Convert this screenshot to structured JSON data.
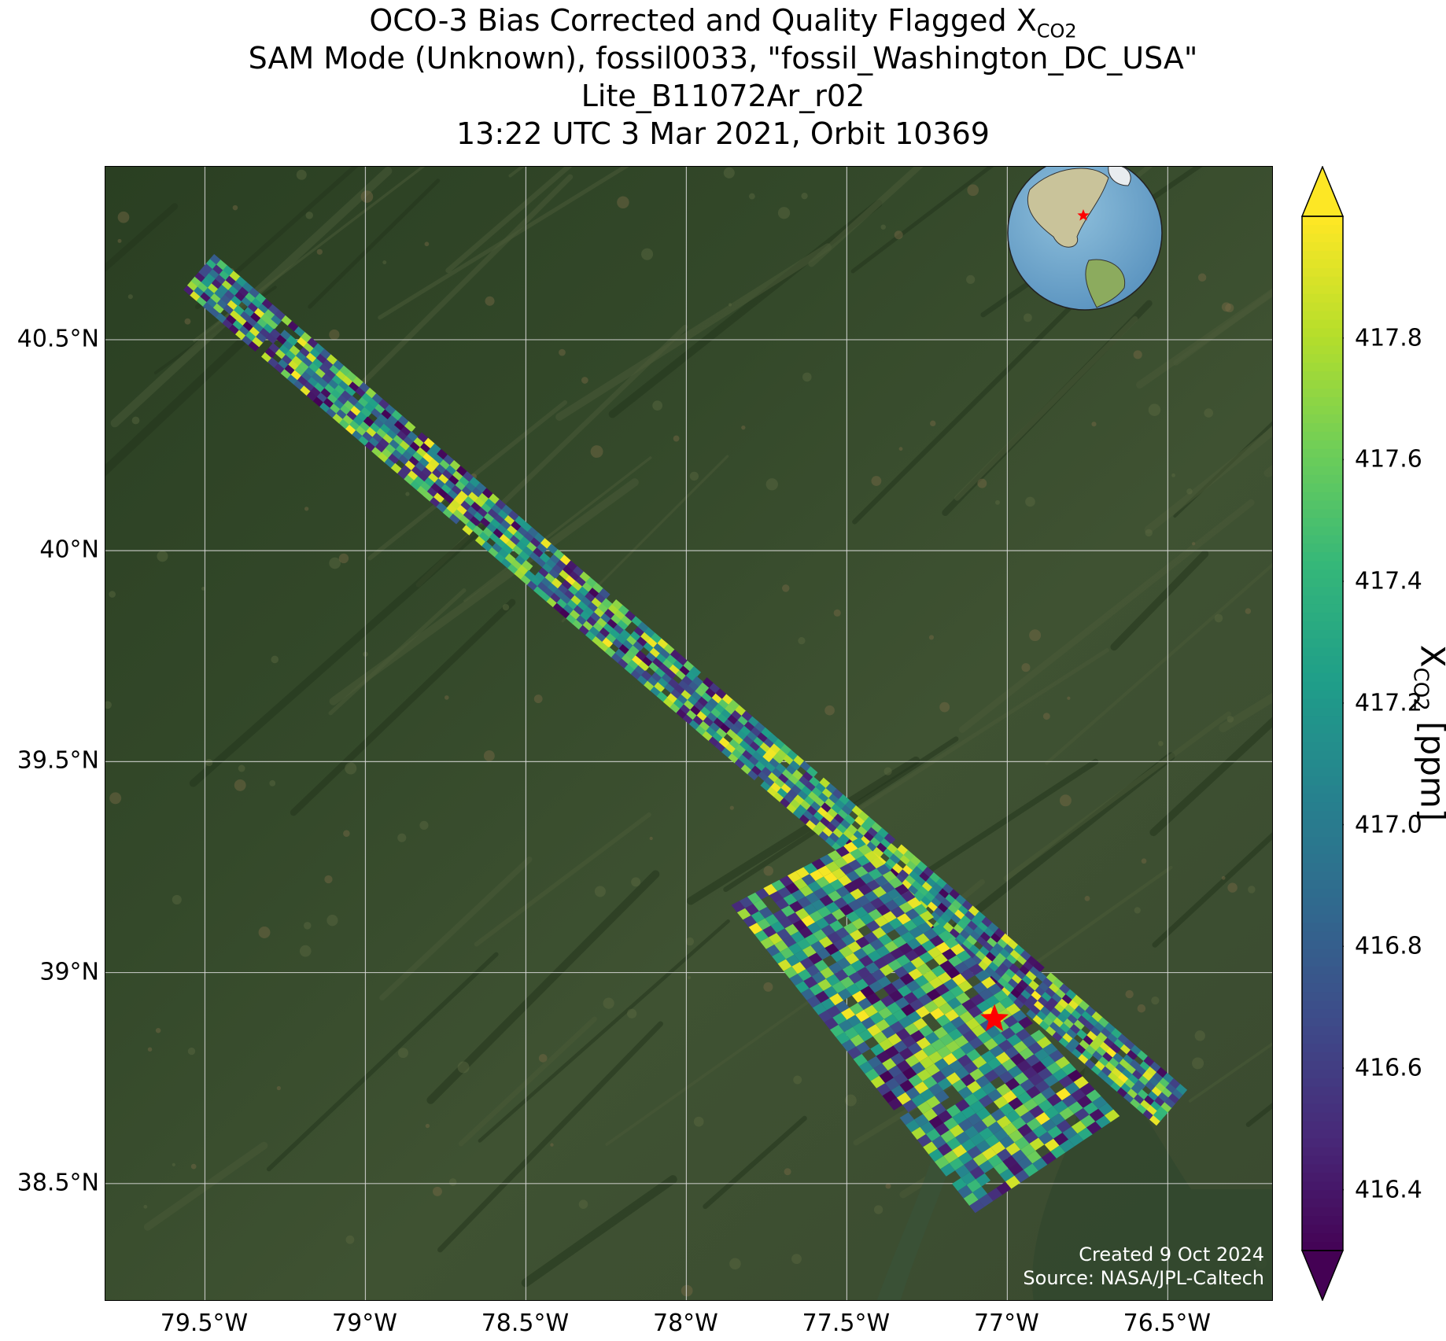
{
  "title": {
    "line1_prefix": "OCO-3 Bias Corrected and Quality Flagged X",
    "line1_sub": "CO2",
    "line2": "SAM Mode (Unknown), fossil0033, \"fossil_Washington_DC_USA\"",
    "line3": "Lite_B11072Ar_r02",
    "line4": "13:22 UTC 3 Mar 2021, Orbit 10369"
  },
  "map": {
    "lon_range": [
      -79.81,
      -76.17
    ],
    "lat_range": [
      38.22,
      40.91
    ],
    "x_ticks": [
      {
        "value": -79.5,
        "label": "79.5°W"
      },
      {
        "value": -79.0,
        "label": "79°W"
      },
      {
        "value": -78.5,
        "label": "78.5°W"
      },
      {
        "value": -78.0,
        "label": "78°W"
      },
      {
        "value": -77.5,
        "label": "77.5°W"
      },
      {
        "value": -77.0,
        "label": "77°W"
      },
      {
        "value": -76.5,
        "label": "76.5°W"
      }
    ],
    "y_ticks": [
      {
        "value": 40.5,
        "label": "40.5°N"
      },
      {
        "value": 40.0,
        "label": "40°N"
      },
      {
        "value": 39.5,
        "label": "39.5°N"
      },
      {
        "value": 39.0,
        "label": "39°N"
      },
      {
        "value": 38.5,
        "label": "38.5°N"
      }
    ],
    "target_marker": {
      "lon": -77.04,
      "lat": 38.89,
      "color": "#ff0000",
      "symbol": "star"
    },
    "basemap": "satellite imagery",
    "gridlines": true,
    "swath_1": {
      "start": [
        -79.52,
        40.66
      ],
      "end": [
        -76.49,
        38.68
      ],
      "cross_width_deg": 0.2
    },
    "swath_2": {
      "corners": [
        [
          -77.86,
          39.16
        ],
        [
          -77.46,
          39.32
        ],
        [
          -76.65,
          38.66
        ],
        [
          -77.1,
          38.43
        ]
      ]
    },
    "inset_globe": {
      "center_lon": -77,
      "center_lat": 39,
      "marker_color": "#ff0000"
    }
  },
  "colorbar": {
    "label_prefix": "X",
    "label_sub": "CO2",
    "label_suffix": " [ppm]",
    "min": 416.3,
    "max": 418.0,
    "extend": "both",
    "colormap": "viridis",
    "ticks": [
      "416.4",
      "416.6",
      "416.8",
      "417.0",
      "417.2",
      "417.4",
      "417.6",
      "417.8"
    ]
  },
  "credits": {
    "created": "Created 9 Oct 2024",
    "source": "Source: NASA/JPL-Caltech"
  }
}
